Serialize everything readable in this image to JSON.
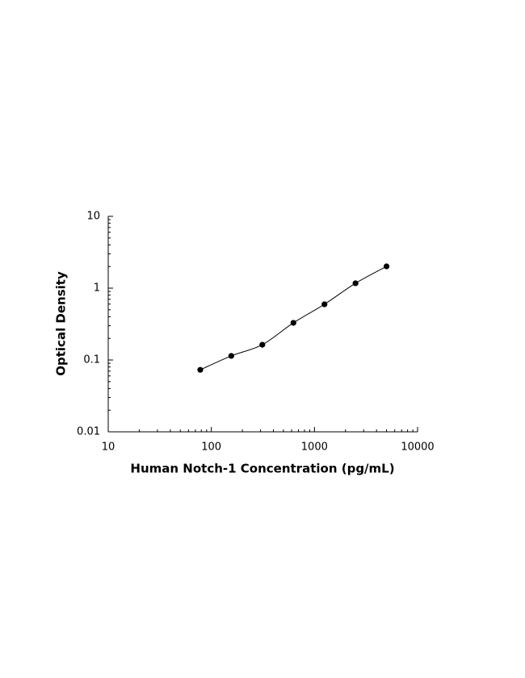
{
  "chart_data": {
    "type": "scatter",
    "x_label": "Human Notch-1 Concentration (pg/mL)",
    "y_label": "Optical Density",
    "x": [
      78.1,
      156,
      312,
      625,
      1250,
      2500,
      5000
    ],
    "values": [
      0.073,
      0.114,
      0.163,
      0.329,
      0.596,
      1.17,
      2.01
    ],
    "color": "#000000",
    "fit_line": true,
    "xscale": "log",
    "yscale": "log",
    "xlim": [
      10,
      10000
    ],
    "xticks": [
      10,
      100,
      1000,
      10000
    ],
    "ylim": [
      0.01,
      10
    ],
    "yticks": [
      0.01,
      0.1,
      1,
      10
    ],
    "minor_ticks": true
  }
}
